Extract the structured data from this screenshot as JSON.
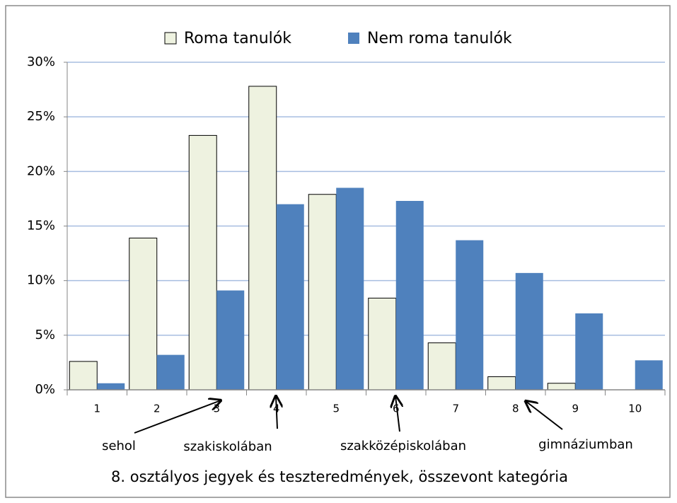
{
  "chart_data": {
    "type": "bar",
    "xlabel": "8. osztályos jegyek és teszteredmények, összevont kategória",
    "categories": [
      "1",
      "2",
      "3",
      "4",
      "5",
      "6",
      "7",
      "8",
      "9",
      "10"
    ],
    "series": [
      {
        "name": "Roma tanulók",
        "color": "#eef2e0",
        "values": [
          2.6,
          13.9,
          23.3,
          27.8,
          17.9,
          8.4,
          4.3,
          1.2,
          0.6,
          0
        ]
      },
      {
        "name": "Nem roma tanulók",
        "color": "#4f81bd",
        "values": [
          0.6,
          3.2,
          9.1,
          17.0,
          18.5,
          17.3,
          13.7,
          10.7,
          7.0,
          2.7
        ]
      }
    ],
    "ylim": [
      0,
      30
    ],
    "yticks": [
      {
        "value": 0,
        "label": "0%"
      },
      {
        "value": 5,
        "label": "5%"
      },
      {
        "value": 10,
        "label": "10%"
      },
      {
        "value": 15,
        "label": "15%"
      },
      {
        "value": 20,
        "label": "20%"
      },
      {
        "value": 25,
        "label": "25%"
      },
      {
        "value": 30,
        "label": "30%"
      }
    ],
    "grid": true,
    "legend": "top",
    "annotations": [
      "sehol",
      "szakiskolában",
      "szakközépiskolában",
      "gimnáziumban"
    ]
  }
}
